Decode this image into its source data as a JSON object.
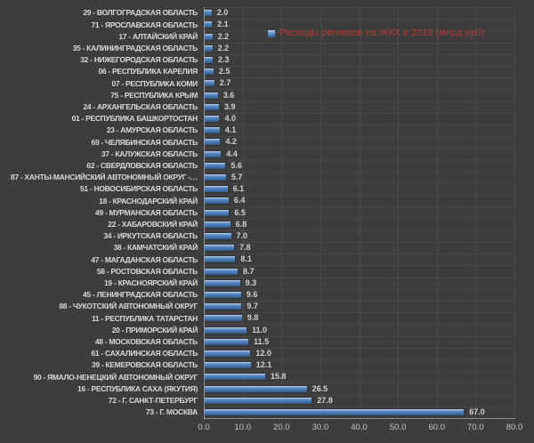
{
  "chart_data": {
    "type": "bar",
    "orientation": "horizontal",
    "title": "",
    "legend": "Расходы регионов на ЖКХ в 2018 (млрд руб)",
    "legend_position": "inside-top-right",
    "xlabel": "",
    "ylabel": "",
    "xlim": [
      0,
      80
    ],
    "x_ticks": [
      "0.0",
      "10.0",
      "20.0",
      "30.0",
      "40.0",
      "50.0",
      "60.0",
      "70.0",
      "80.0"
    ],
    "grid": true,
    "categories": [
      "29 - ВОЛГОГРАДСКАЯ ОБЛАСТЬ",
      "71 - ЯРОСЛАВСКАЯ ОБЛАСТЬ",
      "17 - АЛТАЙСКИЙ КРАЙ",
      "35 - КАЛИНИНГРАДСКАЯ ОБЛАСТЬ",
      "32 - НИЖЕГОРОДСКАЯ ОБЛАСТЬ",
      "06 - РЕСПУБЛИКА КАРЕЛИЯ",
      "07 - РЕСПУБЛИКА КОМИ",
      "75 - РЕСПУБЛИКА КРЫМ",
      "24 - АРХАНГЕЛЬСКАЯ ОБЛАСТЬ",
      "01 - РЕСПУБЛИКА БАШКОРТОСТАН",
      "23 - АМУРСКАЯ ОБЛАСТЬ",
      "69 - ЧЕЛЯБИНСКАЯ ОБЛАСТЬ",
      "37 - КАЛУЖСКАЯ ОБЛАСТЬ",
      "62 - СВЕРДЛОВСКАЯ ОБЛАСТЬ",
      "87 - ХАНТЫ-МАНСИЙСКИЙ АВТОНОМНЫЙ ОКРУГ -…",
      "51 - НОВОСИБИРСКАЯ ОБЛАСТЬ",
      "18 - КРАСНОДАРСКИЙ КРАЙ",
      "49 - МУРМАНСКАЯ ОБЛАСТЬ",
      "22 - ХАБАРОВСКИЙ КРАЙ",
      "34 - ИРКУТСКАЯ ОБЛАСТЬ",
      "38 - КАМЧАТСКИЙ КРАЙ",
      "47 - МАГАДАНСКАЯ ОБЛАСТЬ",
      "58 - РОСТОВСКАЯ ОБЛАСТЬ",
      "19 - КРАСНОЯРСКИЙ КРАЙ",
      "45 - ЛЕНИНГРАДСКАЯ ОБЛАСТЬ",
      "88 - ЧУКОТСКИЙ АВТОНОМНЫЙ ОКРУГ",
      "11 - РЕСПУБЛИКА ТАТАРСТАН",
      "20 - ПРИМОРСКИЙ КРАЙ",
      "48 - МОСКОВСКАЯ ОБЛАСТЬ",
      "61 - САХАЛИНСКАЯ ОБЛАСТЬ",
      "39 - КЕМЕРОВСКАЯ ОБЛАСТЬ",
      "90 - ЯМАЛО-НЕНЕЦКИЙ АВТОНОМНЫЙ ОКРУГ",
      "16 - РЕСПУБЛИКА САХА (ЯКУТИЯ)",
      "72 - Г. САНКТ-ПЕТЕРБУРГ",
      "73 - Г. МОСКВА"
    ],
    "values": [
      2.0,
      2.1,
      2.2,
      2.2,
      2.3,
      2.5,
      2.7,
      3.6,
      3.9,
      4.0,
      4.1,
      4.2,
      4.4,
      5.6,
      5.7,
      6.1,
      6.4,
      6.5,
      6.8,
      7.0,
      7.8,
      8.1,
      8.7,
      9.3,
      9.6,
      9.7,
      9.8,
      11.0,
      11.5,
      12.0,
      12.1,
      15.8,
      26.5,
      27.8,
      67.0
    ],
    "colors": {
      "background": "#3d3d3d",
      "bar": "#4a7db8",
      "bar_highlight": "#c9d7e9",
      "category_text": "#d9d9d9",
      "value_text": "#d2d2d2",
      "tick_text": "#c6c6c6",
      "legend_text": "#b23b32",
      "gridline": "#4b4b4b",
      "axis_line": "#949494"
    }
  }
}
